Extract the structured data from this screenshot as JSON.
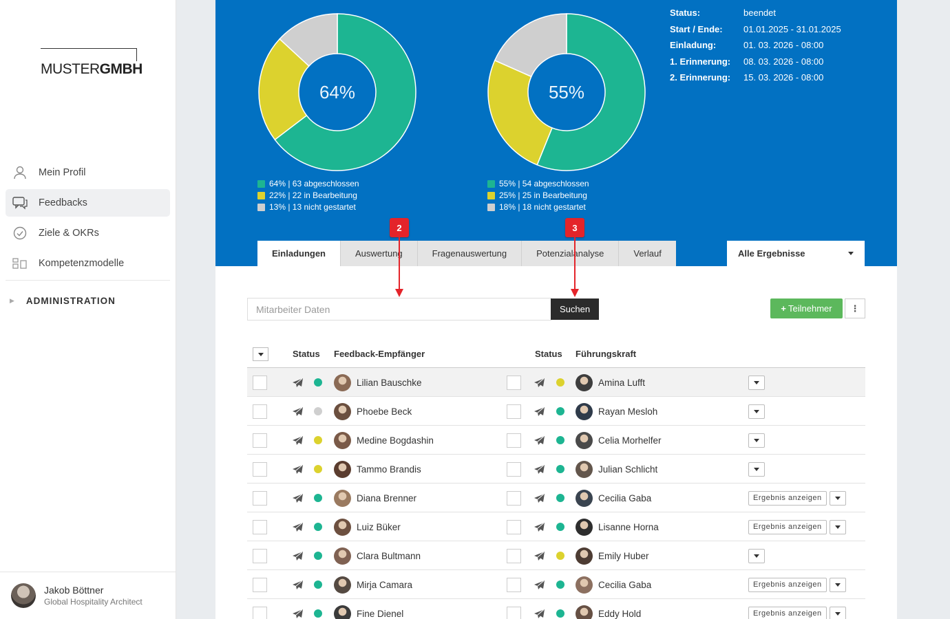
{
  "brand": {
    "light": "MUSTER",
    "bold": "GMBH"
  },
  "nav": [
    {
      "label": "Mein Profil",
      "icon": "person-icon"
    },
    {
      "label": "Feedbacks",
      "icon": "chat-icon"
    },
    {
      "label": "Ziele & OKRs",
      "icon": "check-circle-icon"
    },
    {
      "label": "Kompetenzmodelle",
      "icon": "model-icon"
    }
  ],
  "admin_label": "ADMINISTRATION",
  "user": {
    "name": "Jakob Böttner",
    "role": "Global Hospitality Architect"
  },
  "colors": {
    "header": "#0271c2",
    "done": "#1db592",
    "progress": "#dcd22e",
    "notstarted": "#cfcfcf",
    "badge": "#e4242a",
    "add": "#5cb85c"
  },
  "donuts": [
    {
      "center": "64%",
      "slices": [
        64,
        22,
        13
      ],
      "legend": [
        "64% | 63 abgeschlossen",
        "22% | 22 in Bearbeitung",
        "13% | 13 nicht gestartet"
      ]
    },
    {
      "center": "55%",
      "slices": [
        55,
        25,
        18
      ],
      "legend": [
        "55% | 54 abgeschlossen",
        "25% | 25 in Bearbeitung",
        "18% | 18 nicht gestartet"
      ]
    }
  ],
  "info": [
    {
      "k": "Status:",
      "v": "beendet"
    },
    {
      "k": "Start / Ende:",
      "v": "01.01.2025 - 31.01.2025"
    },
    {
      "k": "Einladung:",
      "v": "01. 03. 2026 - 08:00"
    },
    {
      "k": "1. Erinnerung:",
      "v": "08. 03. 2026 - 08:00"
    },
    {
      "k": "2. Erinnerung:",
      "v": "15. 03. 2026 - 08:00"
    }
  ],
  "tabs": [
    "Einladungen",
    "Auswertung",
    "Fragenauswertung",
    "Potenzialanalyse",
    "Verlauf"
  ],
  "result_select": "Alle Ergebnisse",
  "badges": [
    "2",
    "3"
  ],
  "search": {
    "placeholder": "Mitarbeiter Daten",
    "button": "Suchen"
  },
  "add_button": "Teilnehmer",
  "more_button": "⋮",
  "columns": {
    "status": "Status",
    "recipient": "Feedback-Empfänger",
    "status2": "Status",
    "manager": "Führungskraft"
  },
  "result_label": "Ergebnis anzeigen",
  "rows": [
    {
      "recipient": "Lilian Bauschke",
      "rs": "done",
      "manager": "Amina Lufft",
      "ms": "progress",
      "result": false
    },
    {
      "recipient": "Phoebe Beck",
      "rs": "notstarted",
      "manager": "Rayan Mesloh",
      "ms": "done",
      "result": false
    },
    {
      "recipient": "Medine Bogdashin",
      "rs": "progress",
      "manager": "Celia Morhelfer",
      "ms": "done",
      "result": false
    },
    {
      "recipient": "Tammo Brandis",
      "rs": "progress",
      "manager": "Julian Schlicht",
      "ms": "done",
      "result": false
    },
    {
      "recipient": "Diana Brenner",
      "rs": "done",
      "manager": "Cecilia Gaba",
      "ms": "done",
      "result": true
    },
    {
      "recipient": "Luiz Büker",
      "rs": "done",
      "manager": "Lisanne Horna",
      "ms": "done",
      "result": true
    },
    {
      "recipient": "Clara Bultmann",
      "rs": "done",
      "manager": "Emily Huber",
      "ms": "progress",
      "result": false
    },
    {
      "recipient": "Mirja Camara",
      "rs": "done",
      "manager": "Cecilia Gaba",
      "ms": "done",
      "result": true
    },
    {
      "recipient": "Fine Dienel",
      "rs": "done",
      "manager": "Eddy Hold",
      "ms": "done",
      "result": true
    }
  ]
}
